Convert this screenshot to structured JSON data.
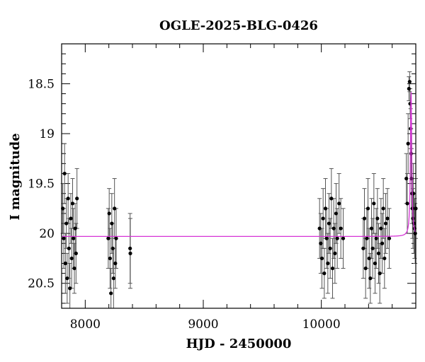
{
  "chart_data": {
    "type": "scatter",
    "title": "OGLE-2025-BLG-0426",
    "xlabel": "HJD - 2450000",
    "ylabel": "I magnitude",
    "xlim": [
      7800,
      10800
    ],
    "ylim": [
      20.75,
      18.1
    ],
    "y_inverted": true,
    "x_ticks": [
      8000,
      9000,
      10000
    ],
    "y_ticks": [
      18.5,
      19,
      19.5,
      20,
      20.5
    ],
    "x_tick_labels": [
      "8000",
      "9000",
      "10000"
    ],
    "y_tick_labels": [
      "18.5",
      "19",
      "19.5",
      "20",
      "20.5"
    ],
    "grid": false,
    "legend": "none",
    "colors": {
      "points": "#000000",
      "errorbars": "#555555",
      "model": "#d633d6"
    },
    "series": [
      {
        "type": "scatter_errorbar",
        "x": [
          7810,
          7818,
          7825,
          7832,
          7840,
          7847,
          7855,
          7862,
          7870,
          7878,
          7885,
          7893,
          7900,
          7908,
          7915,
          7922,
          7930,
          8195,
          8203,
          8210,
          8218,
          8225,
          8233,
          8240,
          8248,
          8255,
          8262,
          8380,
          8382,
          9985,
          9995,
          10005,
          10015,
          10025,
          10035,
          10045,
          10055,
          10065,
          10075,
          10085,
          10095,
          10105,
          10115,
          10125,
          10135,
          10150,
          10165,
          10185,
          10355,
          10365,
          10375,
          10385,
          10395,
          10405,
          10415,
          10425,
          10435,
          10445,
          10455,
          10465,
          10475,
          10485,
          10495,
          10505,
          10515,
          10525,
          10535,
          10545,
          10560,
          10575,
          10720,
          10728,
          10735,
          10742,
          10748,
          10752,
          10756,
          10760,
          10764,
          10768,
          10772,
          10776,
          10780,
          10785,
          10790,
          10795,
          10800
        ],
        "y": [
          19.75,
          20.05,
          19.4,
          20.3,
          19.9,
          20.45,
          19.65,
          20.15,
          20.55,
          19.85,
          20.25,
          19.7,
          20.05,
          20.35,
          19.95,
          20.2,
          19.65,
          20.05,
          19.8,
          20.25,
          20.6,
          19.9,
          20.15,
          20.45,
          19.75,
          20.3,
          20.05,
          20.15,
          20.2,
          19.95,
          20.1,
          20.25,
          19.85,
          20.4,
          19.75,
          20.05,
          20.3,
          19.9,
          20.15,
          19.65,
          20.35,
          19.95,
          20.2,
          19.8,
          20.05,
          19.7,
          19.95,
          20.05,
          20.15,
          19.85,
          20.35,
          20.05,
          19.75,
          20.25,
          20.45,
          19.95,
          20.15,
          19.7,
          20.3,
          20.05,
          19.85,
          20.2,
          20.4,
          19.95,
          20.1,
          19.75,
          20.25,
          19.9,
          19.85,
          20.05,
          19.45,
          19.7,
          19.1,
          18.55,
          18.48,
          18.7,
          18.95,
          19.2,
          19.45,
          19.6,
          19.75,
          19.85,
          19.6,
          19.9,
          19.95,
          20.0,
          19.75
        ],
        "err": [
          0.25,
          0.3,
          0.3,
          0.3,
          0.25,
          0.25,
          0.25,
          0.3,
          0.25,
          0.25,
          0.3,
          0.25,
          0.3,
          0.25,
          0.25,
          0.3,
          0.3,
          0.3,
          0.25,
          0.3,
          0.25,
          0.3,
          0.25,
          0.3,
          0.3,
          0.25,
          0.3,
          0.35,
          0.35,
          0.3,
          0.3,
          0.3,
          0.3,
          0.25,
          0.3,
          0.3,
          0.3,
          0.3,
          0.3,
          0.3,
          0.3,
          0.3,
          0.3,
          0.3,
          0.3,
          0.3,
          0.3,
          0.3,
          0.3,
          0.3,
          0.3,
          0.3,
          0.3,
          0.3,
          0.25,
          0.3,
          0.3,
          0.3,
          0.3,
          0.3,
          0.3,
          0.3,
          0.3,
          0.3,
          0.3,
          0.3,
          0.3,
          0.3,
          0.3,
          0.3,
          0.25,
          0.3,
          0.3,
          0.12,
          0.1,
          0.15,
          0.2,
          0.25,
          0.3,
          0.3,
          0.3,
          0.3,
          0.3,
          0.3,
          0.3,
          0.3,
          0.3
        ]
      },
      {
        "type": "model_curve",
        "baseline_mag": 20.03,
        "peak_mag": 18.55,
        "t0": 10760,
        "tE": 6.5
      }
    ]
  }
}
